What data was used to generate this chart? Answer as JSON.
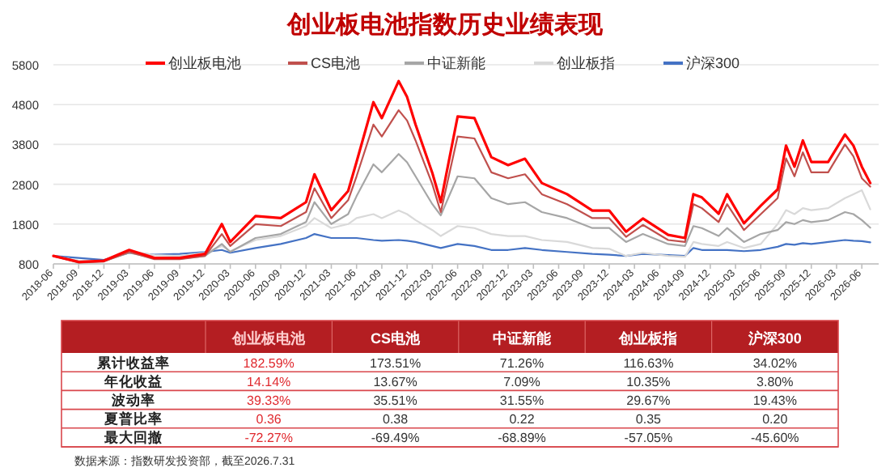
{
  "chart_data": [
    {
      "type": "line",
      "title": "创业板电池指数历史业绩表现",
      "legend": "top",
      "grid": "y",
      "marker": "none",
      "line_style": "solid",
      "x": [
        "2018-06",
        "2018-09",
        "2018-12",
        "2019-03",
        "2019-06",
        "2019-09",
        "2019-12",
        "2020-02",
        "2020-03",
        "2020-06",
        "2020-09",
        "2020-12",
        "2021-01",
        "2021-03",
        "2021-05",
        "2021-06",
        "2021-08",
        "2021-09",
        "2021-11",
        "2021-12",
        "2022-01",
        "2022-03",
        "2022-04",
        "2022-06",
        "2022-08",
        "2022-10",
        "2022-12",
        "2023-02",
        "2023-04",
        "2023-07",
        "2023-10",
        "2023-12",
        "2024-02",
        "2024-04",
        "2024-07",
        "2024-09",
        "2024-10",
        "2024-11",
        "2025-01",
        "2025-02",
        "2025-04",
        "2025-06",
        "2025-08",
        "2025-09",
        "2025-10",
        "2025-11",
        "2025-12",
        "2026-02",
        "2026-04",
        "2026-05",
        "2026-06",
        "2026-07"
      ],
      "xlim": [
        "2018-06",
        "2026-08"
      ],
      "xticks": [
        "2018-06",
        "2018-09",
        "2018-12",
        "2019-03",
        "2019-06",
        "2019-09",
        "2019-12",
        "2020-03",
        "2020-06",
        "2020-09",
        "2020-12",
        "2021-03",
        "2021-06",
        "2021-09",
        "2021-12",
        "2022-03",
        "2022-06",
        "2022-09",
        "2022-12",
        "2023-03",
        "2023-06",
        "2023-09",
        "2023-12",
        "2024-03",
        "2024-06",
        "2024-09",
        "2024-12",
        "2025-03",
        "2025-06",
        "2025-09",
        "2025-12",
        "2026-03",
        "2026-06"
      ],
      "ylim": [
        800,
        5800
      ],
      "yticks": [
        800,
        1800,
        2800,
        3800,
        4800,
        5800
      ],
      "series": [
        {
          "name": "创业板电池",
          "color": "#ff0000",
          "values": [
            1000,
            850,
            880,
            1150,
            950,
            950,
            1050,
            1800,
            1350,
            2000,
            1950,
            2350,
            3050,
            2150,
            2630,
            3360,
            4860,
            4460,
            5390,
            4990,
            4300,
            3080,
            2350,
            4500,
            4460,
            3480,
            3280,
            3440,
            2830,
            2550,
            2140,
            2140,
            1610,
            1940,
            1530,
            1450,
            2550,
            2470,
            2060,
            2550,
            1820,
            2260,
            2670,
            3770,
            3240,
            3900,
            3360,
            3360,
            4050,
            3770,
            3240,
            2830
          ]
        },
        {
          "name": "CS电池",
          "color": "#c0504d",
          "values": [
            1000,
            830,
            860,
            1100,
            920,
            920,
            1000,
            1550,
            1250,
            1800,
            1750,
            2100,
            2700,
            1950,
            2400,
            3000,
            4300,
            4000,
            4660,
            4400,
            3900,
            2800,
            2100,
            4000,
            3950,
            3100,
            2950,
            3050,
            2550,
            2300,
            1950,
            1950,
            1480,
            1780,
            1400,
            1350,
            2300,
            2200,
            1850,
            2300,
            1650,
            2050,
            2450,
            3450,
            3000,
            3600,
            3100,
            3100,
            3800,
            3500,
            2950,
            2740
          ]
        },
        {
          "name": "中证新能",
          "color": "#a6a6a6",
          "values": [
            1000,
            860,
            870,
            1080,
            950,
            930,
            1000,
            1300,
            1100,
            1450,
            1550,
            1850,
            2350,
            1800,
            2050,
            2500,
            3300,
            3100,
            3560,
            3350,
            3000,
            2300,
            2020,
            3000,
            2950,
            2450,
            2300,
            2350,
            2100,
            1950,
            1700,
            1700,
            1350,
            1550,
            1300,
            1250,
            1750,
            1700,
            1500,
            1700,
            1350,
            1550,
            1650,
            1850,
            1800,
            1900,
            1850,
            1900,
            2100,
            2050,
            1900,
            1710
          ]
        },
        {
          "name": "创业板指",
          "color": "#d9d9d9",
          "values": [
            1000,
            880,
            860,
            1120,
            1020,
            1000,
            1080,
            1250,
            1120,
            1400,
            1500,
            1750,
            1950,
            1700,
            1800,
            1950,
            2050,
            1950,
            2140,
            2050,
            1900,
            1650,
            1500,
            1750,
            1700,
            1550,
            1500,
            1500,
            1400,
            1350,
            1200,
            1180,
            1000,
            1080,
            1000,
            980,
            1350,
            1300,
            1250,
            1350,
            1200,
            1300,
            1800,
            2150,
            2050,
            2200,
            2150,
            2200,
            2450,
            2550,
            2650,
            2170
          ]
        },
        {
          "name": "沪深300",
          "color": "#4472c4",
          "values": [
            1000,
            950,
            900,
            1080,
            1030,
            1050,
            1100,
            1150,
            1080,
            1200,
            1300,
            1450,
            1550,
            1450,
            1450,
            1450,
            1400,
            1380,
            1400,
            1380,
            1350,
            1250,
            1200,
            1300,
            1250,
            1150,
            1150,
            1200,
            1150,
            1100,
            1050,
            1030,
            1000,
            1050,
            1020,
            1000,
            1200,
            1150,
            1150,
            1150,
            1120,
            1150,
            1230,
            1300,
            1280,
            1320,
            1300,
            1350,
            1400,
            1380,
            1370,
            1340
          ]
        }
      ]
    },
    {
      "type": "other",
      "categories": [
        "创业板电池",
        "CS电池",
        "中证新能",
        "创业板指",
        "沪深300"
      ],
      "y_categories": [
        "累计收益率",
        "年化收益",
        "波动率",
        "夏普比率",
        "最大回撤"
      ],
      "cell_labels": [
        [
          "182.59%",
          "173.51%",
          "71.26%",
          "116.63%",
          "34.02%"
        ],
        [
          "14.14%",
          "13.67%",
          "7.09%",
          "10.35%",
          "3.80%"
        ],
        [
          "39.33%",
          "35.51%",
          "31.55%",
          "29.67%",
          "19.43%"
        ],
        [
          "0.36",
          "0.38",
          "0.22",
          "0.35",
          "0.20"
        ],
        [
          "-72.27%",
          "-69.49%",
          "-68.89%",
          "-57.05%",
          "-45.60%"
        ]
      ],
      "annotations": [
        "数据来源：指数研发投资部，截至2026.7.31"
      ]
    }
  ]
}
